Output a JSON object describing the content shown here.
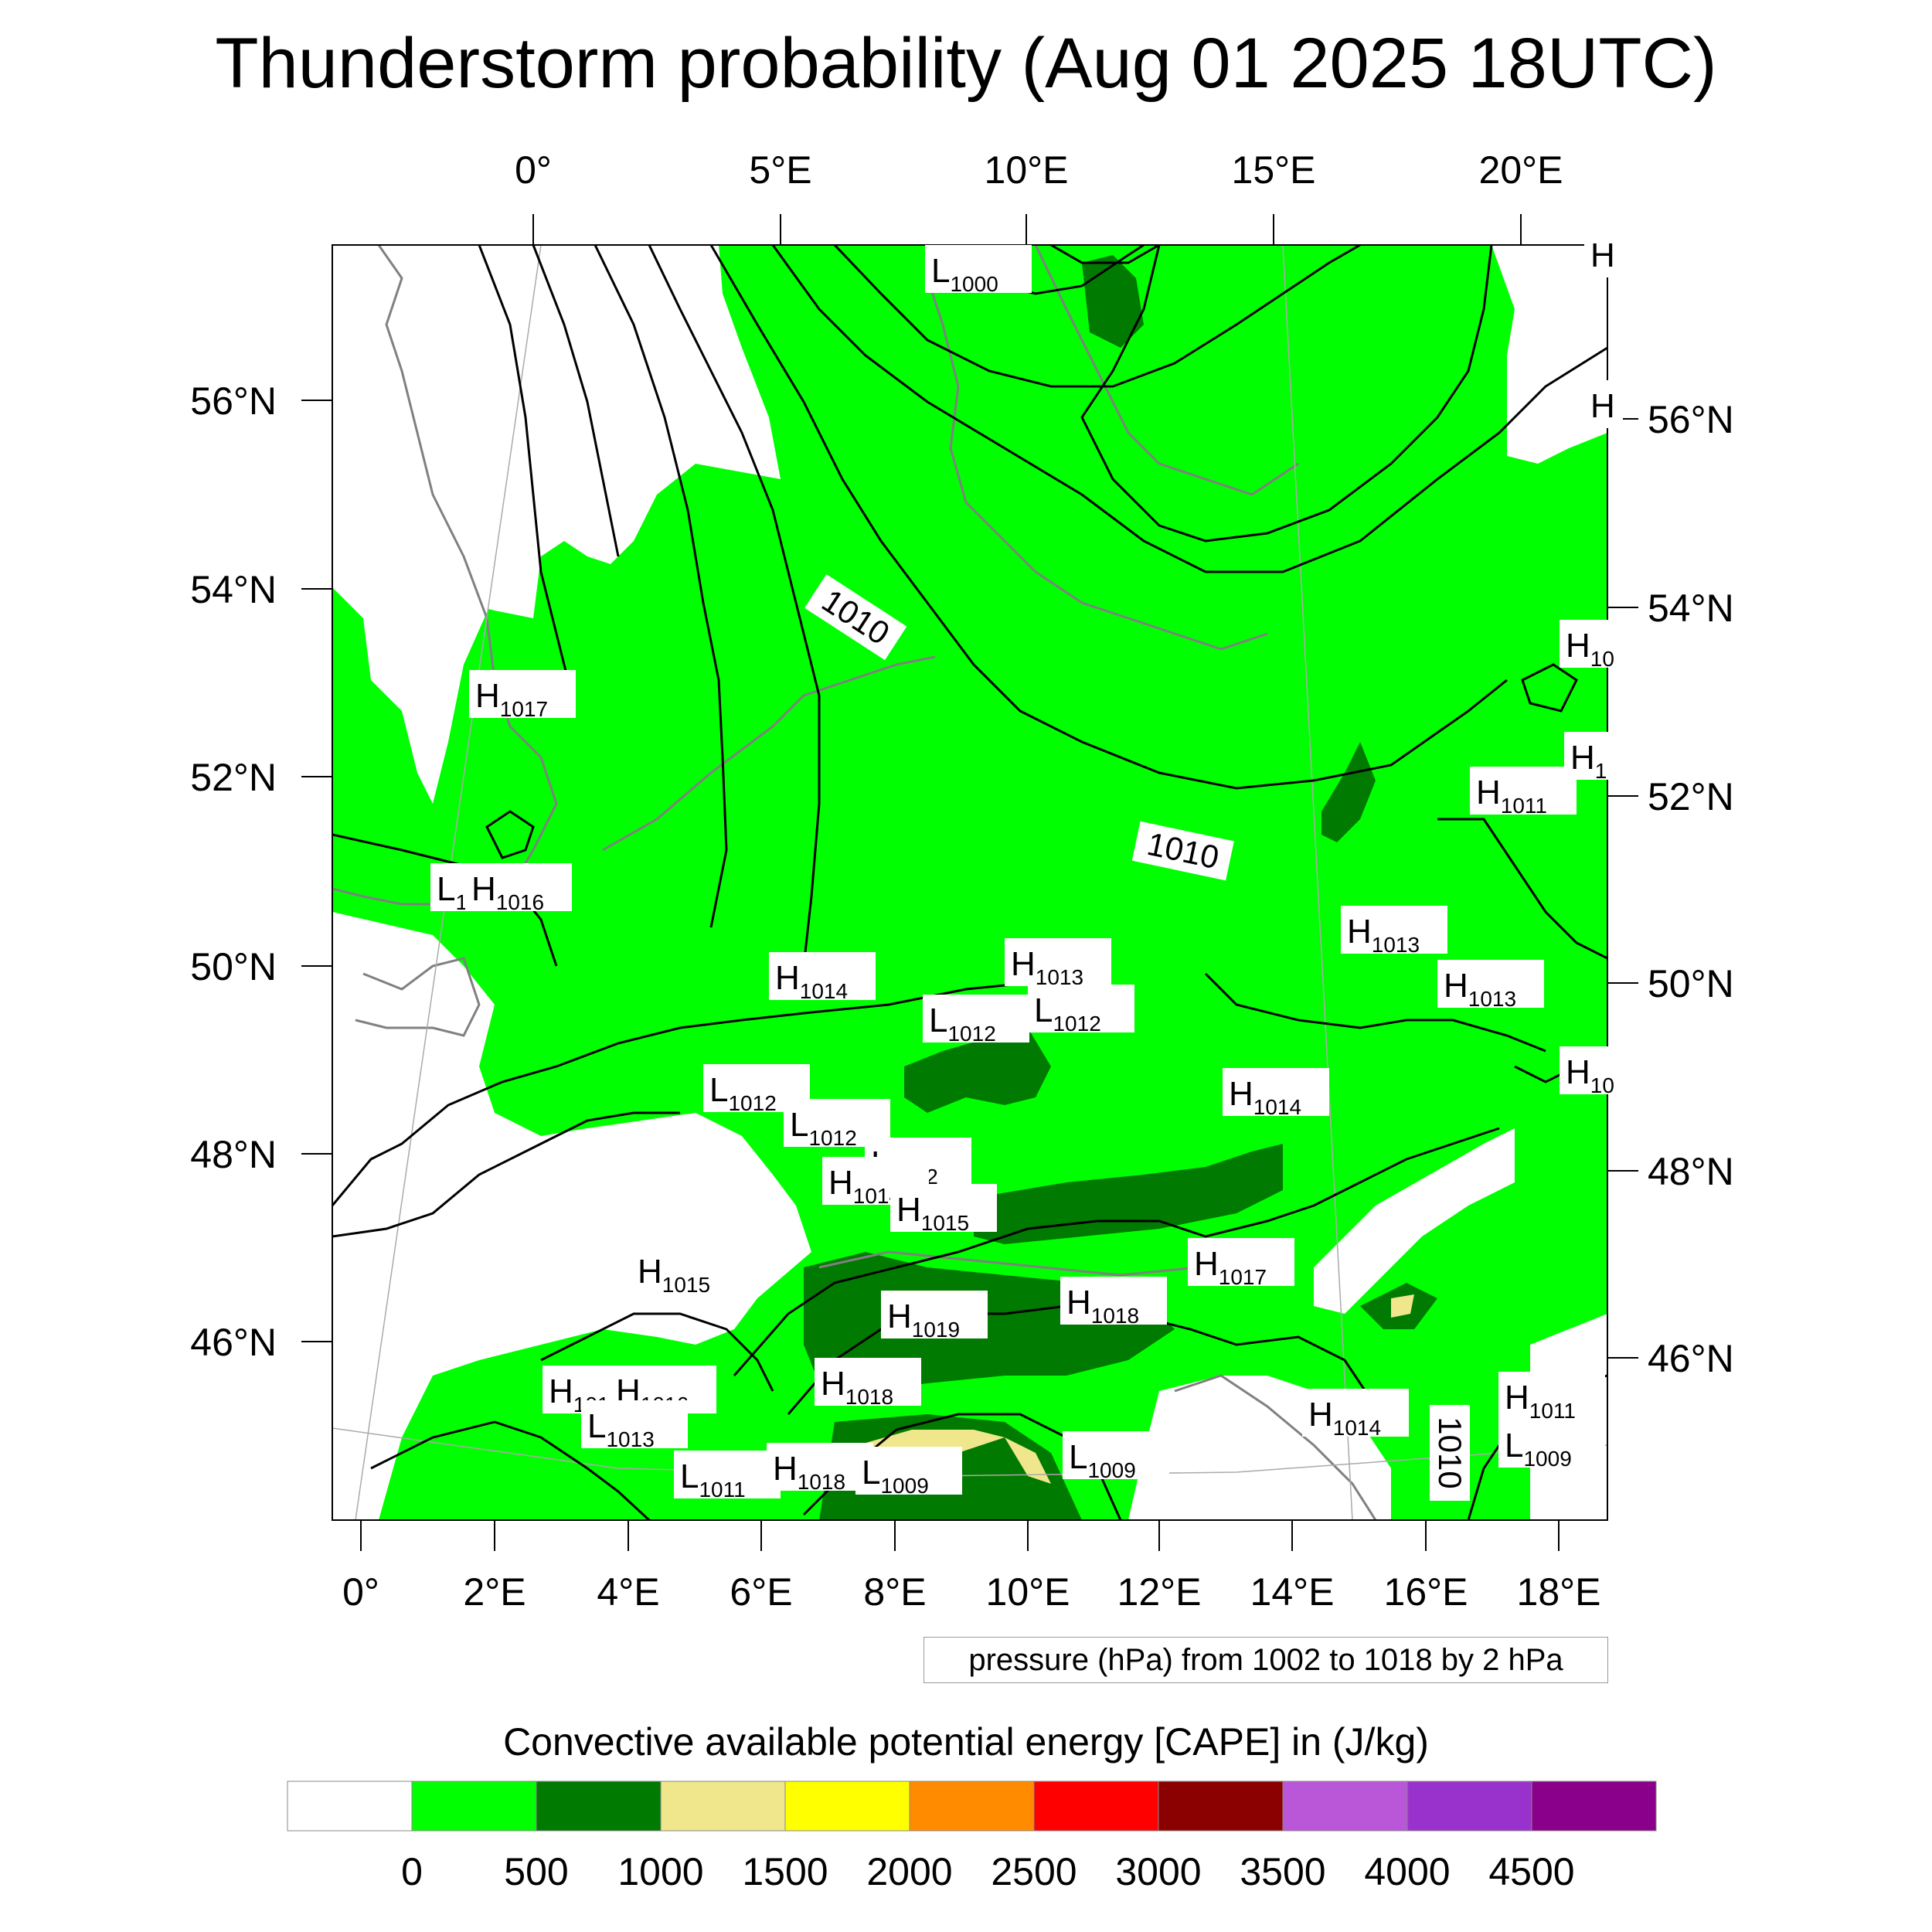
{
  "title": "Thunderstorm probability (Aug 01 2025 18UTC)",
  "map": {
    "top_lon_ticks": [
      "0°",
      "5°E",
      "10°E",
      "15°E",
      "20°E"
    ],
    "bottom_lon_ticks": [
      "0°",
      "2°E",
      "4°E",
      "6°E",
      "8°E",
      "10°E",
      "12°E",
      "14°E",
      "16°E",
      "18°E"
    ],
    "left_lat_ticks": [
      "56°N",
      "54°N",
      "52°N",
      "50°N",
      "48°N",
      "46°N"
    ],
    "right_lat_ticks": [
      "56°N",
      "54°N",
      "52°N",
      "50°N",
      "48°N",
      "46°N"
    ],
    "isobar_labels": [
      "1010",
      "1010",
      "1010"
    ],
    "pressure_centers": [
      {
        "type": "L",
        "value": "1000"
      },
      {
        "type": "H",
        "value": "1017"
      },
      {
        "type": "L",
        "value": "1"
      },
      {
        "type": "H",
        "value": "1016"
      },
      {
        "type": "H",
        "value": "1014"
      },
      {
        "type": "H",
        "value": "1013"
      },
      {
        "type": "L",
        "value": "1012"
      },
      {
        "type": "L",
        "value": "1012"
      },
      {
        "type": "L",
        "value": "1012"
      },
      {
        "type": "L",
        "value": "1012"
      },
      {
        "type": "L",
        "value": "1012"
      },
      {
        "type": "H",
        "value": "1014"
      },
      {
        "type": "H",
        "value": "1015"
      },
      {
        "type": "H",
        "value": "1015"
      },
      {
        "type": "H",
        "value": "1019"
      },
      {
        "type": "H",
        "value": "1018"
      },
      {
        "type": "H",
        "value": "1018"
      },
      {
        "type": "H",
        "value": "1017"
      },
      {
        "type": "H",
        "value": "1014"
      },
      {
        "type": "H",
        "value": "1013"
      },
      {
        "type": "H",
        "value": "1013"
      },
      {
        "type": "H",
        "value": "1011"
      },
      {
        "type": "H",
        "value": "1016"
      },
      {
        "type": "H",
        "value": "1016"
      },
      {
        "type": "L",
        "value": "1013"
      },
      {
        "type": "L",
        "value": "1011"
      },
      {
        "type": "H",
        "value": "1018"
      },
      {
        "type": "L",
        "value": "1009"
      },
      {
        "type": "L",
        "value": "1009"
      },
      {
        "type": "H",
        "value": "1014"
      },
      {
        "type": "H",
        "value": "1011"
      },
      {
        "type": "L",
        "value": "1009"
      },
      {
        "type": "H",
        "value": "10"
      },
      {
        "type": "H",
        "value": "1"
      },
      {
        "type": "H",
        "value": "10"
      },
      {
        "type": "H",
        "value": ""
      },
      {
        "type": "H",
        "value": ""
      }
    ],
    "pressure_info": "pressure (hPa) from 1002 to 1018 by 2 hPa"
  },
  "colorbar": {
    "title": "Convective available potential energy [CAPE] in (J/kg)",
    "tick_labels": [
      "0",
      "500",
      "1000",
      "1500",
      "2000",
      "2500",
      "3000",
      "3500",
      "4000",
      "4500"
    ],
    "colors": [
      "#ffffff",
      "#00ff00",
      "#007a00",
      "#f0e68c",
      "#ffff00",
      "#ff8c00",
      "#ff0000",
      "#8b0000",
      "#b957d8",
      "#9932cc",
      "#8b008b"
    ]
  }
}
